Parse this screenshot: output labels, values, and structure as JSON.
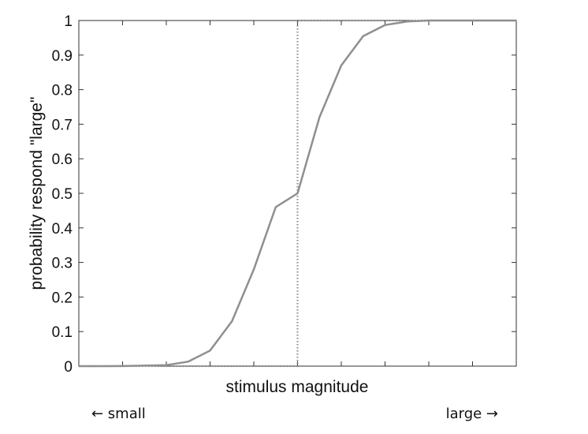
{
  "chart_data": {
    "type": "line",
    "title": "",
    "xlabel": "stimulus magnitude",
    "ylabel": "probability respond \"large\"",
    "xlim": [
      0,
      1
    ],
    "ylim": [
      0,
      1
    ],
    "yticks": [
      "0",
      "0.1",
      "0.2",
      "0.3",
      "0.4",
      "0.5",
      "0.6",
      "0.7",
      "0.8",
      "0.9",
      "1"
    ],
    "x_tick_labels_shown": false,
    "grid": false,
    "x_direction_labels": {
      "left": "← small",
      "right": "large →"
    },
    "series": [
      {
        "style": "solid",
        "color": "#8f8f8f",
        "x": [
          0,
          0.1,
          0.2,
          0.25,
          0.3,
          0.35,
          0.4,
          0.45,
          0.5,
          0.55,
          0.6,
          0.65,
          0.7,
          0.75,
          0.8,
          0.9,
          1
        ],
        "y": [
          0,
          0.0003,
          0.003,
          0.013,
          0.045,
          0.13,
          0.28,
          0.46,
          0.5,
          0.72,
          0.87,
          0.955,
          0.987,
          0.997,
          1,
          1,
          1
        ]
      },
      {
        "style": "dotted",
        "color": "#8f8f8f",
        "x": [
          0,
          0.5,
          0.5,
          1
        ],
        "y": [
          0,
          0,
          1,
          1
        ]
      }
    ]
  }
}
